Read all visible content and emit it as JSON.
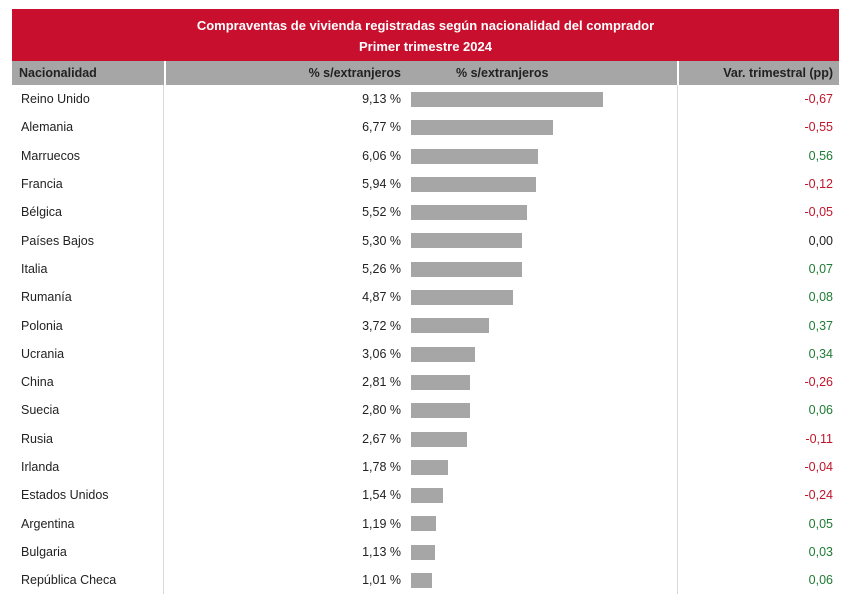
{
  "title_line1": "Compraventas de vivienda registradas según nacionalidad del comprador",
  "title_line2": "Primer trimestre 2024",
  "headers": {
    "nacionalidad": "Nacionalidad",
    "pct": "% s/extranjeros",
    "pct_bar": "% s/extranjeros",
    "var": "Var. trimestral (pp)"
  },
  "colors": {
    "title_bg": "#c8102e",
    "bar": "#a6a6a6",
    "positive": "#1e7b34",
    "negative": "#c0152b"
  },
  "rows": [
    {
      "name": "Reino Unido",
      "pct_text": "9,13 %",
      "var_text": "-0,67"
    },
    {
      "name": "Alemania",
      "pct_text": "6,77 %",
      "var_text": "-0,55"
    },
    {
      "name": "Marruecos",
      "pct_text": "6,06 %",
      "var_text": "0,56"
    },
    {
      "name": "Francia",
      "pct_text": "5,94 %",
      "var_text": "-0,12"
    },
    {
      "name": "Bélgica",
      "pct_text": "5,52 %",
      "var_text": "-0,05"
    },
    {
      "name": "Países Bajos",
      "pct_text": "5,30 %",
      "var_text": "0,00"
    },
    {
      "name": "Italia",
      "pct_text": "5,26 %",
      "var_text": "0,07"
    },
    {
      "name": "Rumanía",
      "pct_text": "4,87 %",
      "var_text": "0,08"
    },
    {
      "name": "Polonia",
      "pct_text": "3,72 %",
      "var_text": "0,37"
    },
    {
      "name": "Ucrania",
      "pct_text": "3,06 %",
      "var_text": "0,34"
    },
    {
      "name": "China",
      "pct_text": "2,81 %",
      "var_text": "-0,26"
    },
    {
      "name": "Suecia",
      "pct_text": "2,80 %",
      "var_text": "0,06"
    },
    {
      "name": "Rusia",
      "pct_text": "2,67 %",
      "var_text": "-0,11"
    },
    {
      "name": "Irlanda",
      "pct_text": "1,78 %",
      "var_text": "-0,04"
    },
    {
      "name": "Estados Unidos",
      "pct_text": "1,54 %",
      "var_text": "-0,24"
    },
    {
      "name": "Argentina",
      "pct_text": "1,19 %",
      "var_text": "0,05"
    },
    {
      "name": "Bulgaria",
      "pct_text": "1,13 %",
      "var_text": "0,03"
    },
    {
      "name": "República Checa",
      "pct_text": "1,01 %",
      "var_text": "0,06"
    }
  ],
  "chart_data": {
    "type": "bar",
    "categories": [
      "Reino Unido",
      "Alemania",
      "Marruecos",
      "Francia",
      "Bélgica",
      "Países Bajos",
      "Italia",
      "Rumanía",
      "Polonia",
      "Ucrania",
      "China",
      "Suecia",
      "Rusia",
      "Irlanda",
      "Estados Unidos",
      "Argentina",
      "Bulgaria",
      "República Checa"
    ],
    "values": [
      9.13,
      6.77,
      6.06,
      5.94,
      5.52,
      5.3,
      5.26,
      4.87,
      3.72,
      3.06,
      2.81,
      2.8,
      2.67,
      1.78,
      1.54,
      1.19,
      1.13,
      1.01
    ],
    "variation": [
      -0.67,
      -0.55,
      0.56,
      -0.12,
      -0.05,
      0.0,
      0.07,
      0.08,
      0.37,
      0.34,
      -0.26,
      0.06,
      -0.11,
      -0.04,
      -0.24,
      0.05,
      0.03,
      0.06
    ],
    "title": "Compraventas de vivienda registradas según nacionalidad del comprador",
    "subtitle": "Primer trimestre 2024",
    "xlabel": "% s/extranjeros",
    "ylabel": "Nacionalidad",
    "orientation": "horizontal",
    "grid": false
  }
}
